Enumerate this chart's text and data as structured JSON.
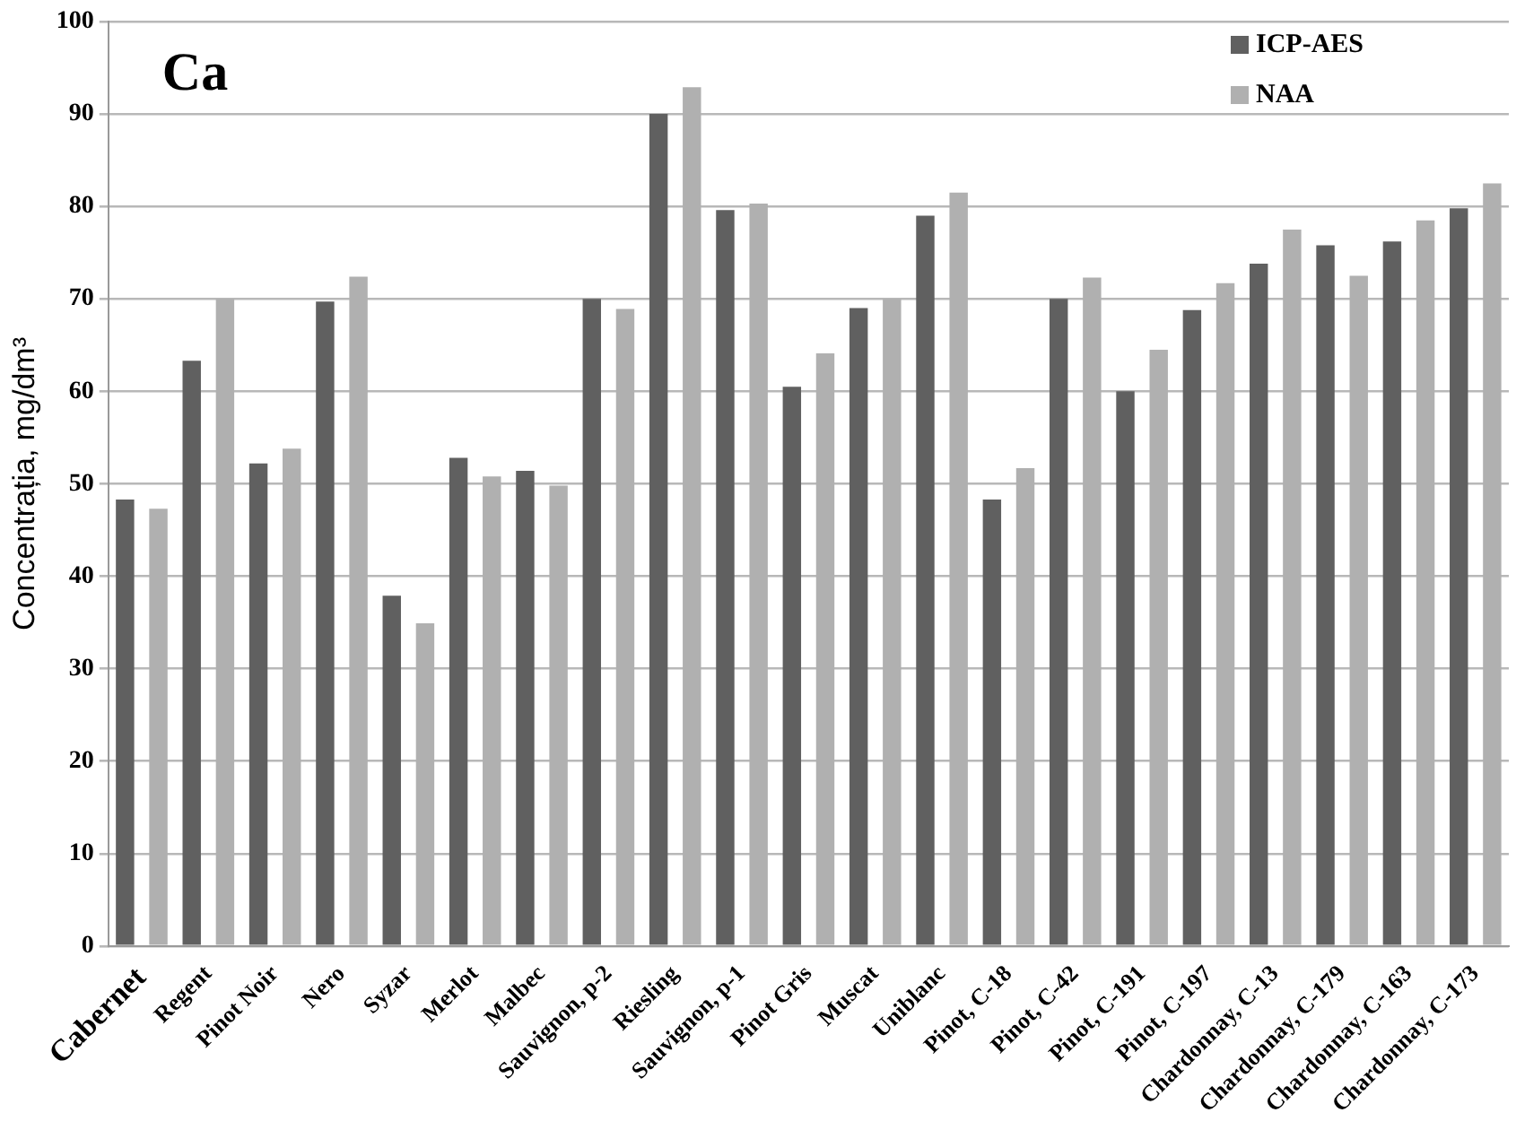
{
  "chart_data": {
    "type": "bar",
    "title": "Ca",
    "ylabel": "Concentrația, mg/dm³",
    "categories": [
      "Cabernet",
      "Regent",
      "Pinot Noir",
      "Nero",
      "Syzar",
      "Merlot",
      "Malbec",
      "Sauvignon, p-2",
      "Riesling",
      "Sauvignon, p-1",
      "Pinot Gris",
      "Muscat",
      "Uniblanc",
      "Pinot, C-18",
      "Pinot, C-42",
      "Pinot, C-191",
      "Pinot, C-197",
      "Chardonnay, C-13",
      "Chardonnay, C-179",
      "Chardonnay, C-163",
      "Chardonnay, C-173"
    ],
    "series": [
      {
        "name": "ICP-AES",
        "color": "#606060",
        "values": [
          48.3,
          63.3,
          52.2,
          69.7,
          37.9,
          52.8,
          51.4,
          70,
          90,
          79.6,
          60.5,
          69,
          79,
          48.3,
          70,
          60,
          68.8,
          73.8,
          75.8,
          76.2,
          79.8
        ]
      },
      {
        "name": "NAA",
        "color": "#b0b0b0",
        "values": [
          47.3,
          70,
          53.8,
          72.4,
          34.9,
          50.8,
          49.8,
          68.9,
          92.9,
          80.3,
          64.1,
          70,
          81.5,
          51.7,
          72.3,
          64.5,
          71.7,
          77.5,
          72.5,
          78.5,
          82.5
        ]
      }
    ],
    "ylim": [
      0,
      100
    ],
    "yticks": [
      0,
      10,
      20,
      30,
      40,
      50,
      60,
      70,
      80,
      90,
      100
    ],
    "grid": "y",
    "legend": "top right"
  }
}
